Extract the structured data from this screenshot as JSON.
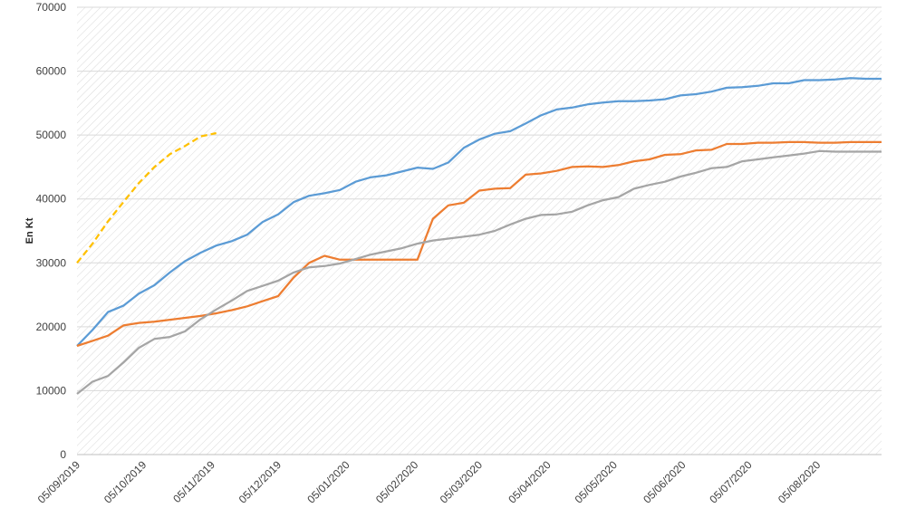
{
  "chart_data": {
    "type": "line",
    "title": "",
    "xlabel": "",
    "ylabel": "En Kt",
    "ylim": [
      0,
      70000
    ],
    "y_ticks": [
      "0",
      "10000",
      "20000",
      "30000",
      "40000",
      "50000",
      "60000",
      "70000"
    ],
    "x_tick_labels": [
      "05/09/2019",
      "05/10/2019",
      "05/11/2019",
      "05/12/2019",
      "05/01/2020",
      "05/02/2020",
      "05/03/2020",
      "05/04/2020",
      "05/05/2020",
      "05/06/2020",
      "05/07/2020",
      "05/08/2020"
    ],
    "x_tick_days": [
      0,
      30,
      61,
      91,
      122,
      153,
      182,
      213,
      243,
      274,
      304,
      335
    ],
    "x_range_days": [
      0,
      364
    ],
    "grid": "horizontal + diagonal hatch background",
    "legend": "none",
    "series": [
      {
        "color": "#5b9bd5",
        "style": "solid",
        "x": [
          0,
          7,
          14,
          21,
          28,
          35,
          42,
          49,
          56,
          63,
          70,
          77,
          84,
          91,
          98,
          105,
          112,
          119,
          126,
          133,
          140,
          147,
          154,
          161,
          168,
          175,
          182,
          189,
          196,
          203,
          210,
          217,
          224,
          231,
          238,
          245,
          252,
          259,
          266,
          273,
          280,
          287,
          294,
          301,
          308,
          315,
          322,
          329,
          336,
          343,
          350,
          357,
          364
        ],
        "y": [
          17000,
          19500,
          22300,
          23300,
          25200,
          26500,
          28500,
          30300,
          31600,
          32700,
          33400,
          34400,
          36400,
          37600,
          39500,
          40500,
          40900,
          41400,
          42700,
          43400,
          43700,
          44300,
          44900,
          44700,
          45700,
          48000,
          49300,
          50200,
          50600,
          51800,
          53100,
          54000,
          54300,
          54800,
          55100,
          55300,
          55300,
          55400,
          55600,
          56200,
          56400,
          56800,
          57400,
          57500,
          57700,
          58100,
          58100,
          58600,
          58600,
          58700,
          58900,
          58800,
          58800
        ]
      },
      {
        "color": "#ed7d31",
        "style": "solid",
        "x": [
          0,
          7,
          14,
          21,
          28,
          35,
          42,
          49,
          56,
          63,
          70,
          77,
          84,
          91,
          98,
          105,
          112,
          119,
          126,
          133,
          140,
          147,
          154,
          161,
          168,
          175,
          182,
          189,
          196,
          203,
          210,
          217,
          224,
          231,
          238,
          245,
          252,
          259,
          266,
          273,
          280,
          287,
          294,
          301,
          308,
          315,
          322,
          329,
          336,
          343,
          350,
          357,
          364
        ],
        "y": [
          17000,
          17800,
          18600,
          20200,
          20600,
          20800,
          21100,
          21400,
          21700,
          22100,
          22600,
          23200,
          24000,
          24800,
          27700,
          30000,
          31100,
          30500,
          30500,
          30500,
          30500,
          30500,
          30500,
          36900,
          39000,
          39400,
          41300,
          41600,
          41700,
          43800,
          44000,
          44400,
          45000,
          45100,
          45000,
          45300,
          45900,
          46200,
          46900,
          47000,
          47600,
          47700,
          48600,
          48600,
          48800,
          48800,
          48900,
          48900,
          48800,
          48800,
          48900,
          48900,
          48900
        ]
      },
      {
        "color": "#a5a5a5",
        "style": "solid",
        "x": [
          0,
          7,
          14,
          21,
          28,
          35,
          42,
          49,
          56,
          63,
          70,
          77,
          84,
          91,
          98,
          105,
          112,
          119,
          126,
          133,
          140,
          147,
          154,
          161,
          168,
          175,
          182,
          189,
          196,
          203,
          210,
          217,
          224,
          231,
          238,
          245,
          252,
          259,
          266,
          273,
          280,
          287,
          294,
          301,
          308,
          315,
          322,
          329,
          336,
          343,
          350,
          357,
          364
        ],
        "y": [
          9500,
          11400,
          12300,
          14400,
          16700,
          18100,
          18400,
          19300,
          21200,
          22700,
          24100,
          25600,
          26400,
          27200,
          28500,
          29300,
          29500,
          29900,
          30600,
          31300,
          31800,
          32300,
          33000,
          33500,
          33800,
          34100,
          34400,
          35000,
          36000,
          36900,
          37500,
          37600,
          38000,
          39000,
          39800,
          40300,
          41600,
          42200,
          42700,
          43500,
          44100,
          44800,
          45000,
          45900,
          46200,
          46500,
          46800,
          47100,
          47500,
          47400,
          47400,
          47400,
          47400
        ]
      },
      {
        "color": "#ffc000",
        "style": "dashed",
        "x": [
          0,
          7,
          14,
          21,
          28,
          35,
          42,
          49,
          56,
          63
        ],
        "y": [
          30000,
          33000,
          36500,
          39500,
          42500,
          45000,
          47000,
          48300,
          49800,
          50300
        ]
      }
    ]
  }
}
